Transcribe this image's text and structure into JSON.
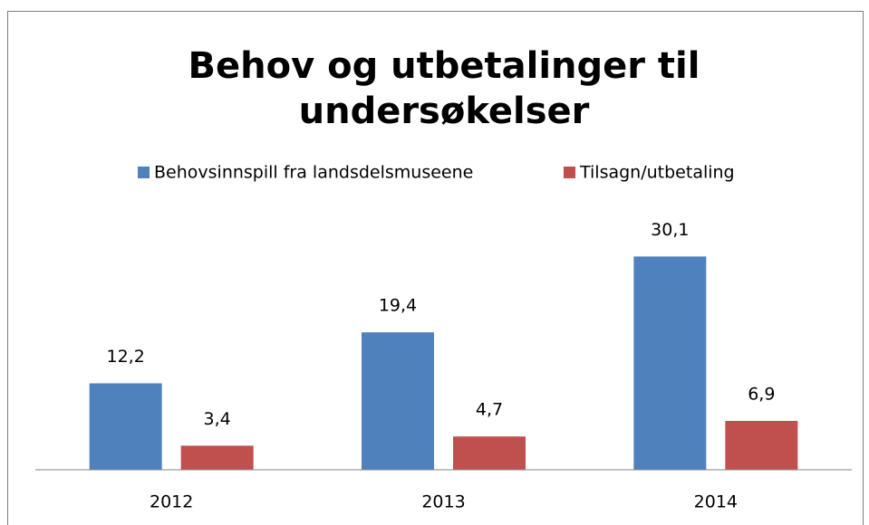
{
  "chart_data": {
    "type": "bar",
    "title": [
      "Behov og utbetalinger til",
      "undersøkelser"
    ],
    "categories": [
      "2012",
      "2013",
      "2014"
    ],
    "series": [
      {
        "name": "Behovsinnspill fra landsdelsmuseene",
        "color": "#4f81bd",
        "values": [
          12.2,
          19.4,
          30.1
        ],
        "value_labels": [
          "12,2",
          "19,4",
          "30,1"
        ]
      },
      {
        "name": "Tilsagn/utbetaling",
        "color": "#c0504d",
        "values": [
          3.4,
          4.7,
          6.9
        ],
        "value_labels": [
          "3,4",
          "4,7",
          "6,9"
        ]
      }
    ],
    "ylim": [
      0,
      35
    ],
    "legend": "top"
  }
}
